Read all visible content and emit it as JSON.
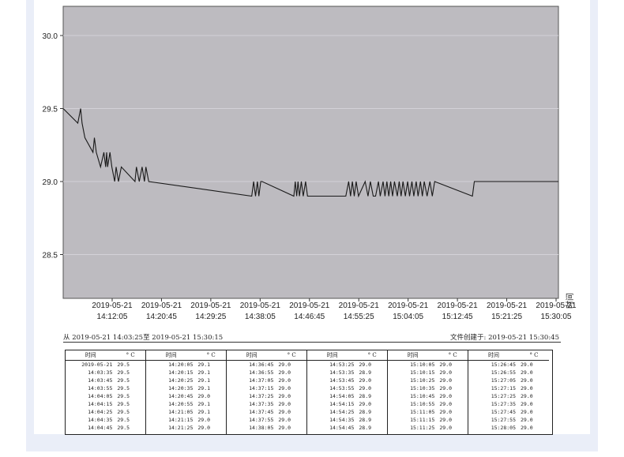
{
  "chart_data": {
    "type": "line",
    "ylim": [
      28.2,
      30.2
    ],
    "y_ticks": [
      "30.0",
      "29.5",
      "29.0",
      "28.5"
    ],
    "x_tick_labels": [
      [
        "2019-05-21",
        "14:12:05"
      ],
      [
        "2019-05-21",
        "14:20:45"
      ],
      [
        "2019-05-21",
        "14:29:25"
      ],
      [
        "2019-05-21",
        "14:38:05"
      ],
      [
        "2019-05-21",
        "14:46:45"
      ],
      [
        "2019-05-21",
        "14:55:25"
      ],
      [
        "2019-05-21",
        "15:04:05"
      ],
      [
        "2019-05-21",
        "15:12:45"
      ],
      [
        "2019-05-21",
        "15:21:25"
      ],
      [
        "2019-05-21",
        "15:30:05"
      ]
    ],
    "xlabel": "时间",
    "grid": true,
    "plot_background": "#bdbbc0",
    "line_color": "#1a1a1a",
    "series": [
      {
        "t": [
          "14:03:25",
          "14:06:00",
          "14:06:30",
          "14:06:45",
          "14:07:15",
          "14:08:40",
          "14:08:55",
          "14:09:15",
          "14:10:00",
          "14:10:35",
          "14:10:55",
          "14:11:05",
          "14:11:15",
          "14:11:40",
          "14:12:00",
          "14:12:30",
          "14:12:45",
          "14:13:10",
          "14:13:40",
          "14:16:05",
          "14:16:20",
          "14:16:50",
          "14:17:20",
          "14:17:45",
          "14:18:00",
          "14:18:30",
          "14:36:40",
          "14:37:00",
          "14:37:20",
          "14:37:40",
          "14:37:55",
          "14:38:15",
          "14:38:30",
          "14:44:05",
          "14:44:20",
          "14:44:35",
          "14:44:50",
          "14:45:05",
          "14:45:25",
          "14:45:45",
          "14:46:10",
          "14:46:30",
          "14:47:30",
          "14:53:15",
          "14:53:45",
          "14:54:05",
          "14:54:25",
          "14:54:45",
          "14:55:05",
          "14:55:30",
          "14:56:40",
          "14:57:10",
          "14:57:35",
          "14:58:05",
          "14:58:30",
          "14:59:00",
          "14:59:20",
          "14:59:50",
          "15:00:10",
          "15:00:30",
          "15:00:50",
          "15:01:10",
          "15:01:30",
          "15:01:50",
          "15:02:20",
          "15:02:40",
          "15:03:00",
          "15:03:20",
          "15:03:45",
          "15:04:10",
          "15:04:30",
          "15:04:55",
          "15:05:15",
          "15:05:40",
          "15:06:00",
          "15:06:25",
          "15:06:45",
          "15:07:05",
          "15:07:35",
          "15:08:05",
          "15:08:30",
          "15:08:55",
          "15:15:35",
          "15:15:55",
          "15:30:45"
        ],
        "values": [
          29.5,
          29.4,
          29.5,
          29.4,
          29.3,
          29.2,
          29.3,
          29.2,
          29.1,
          29.2,
          29.1,
          29.2,
          29.1,
          29.2,
          29.1,
          29.0,
          29.1,
          29.0,
          29.1,
          29.0,
          29.1,
          29.0,
          29.1,
          29.0,
          29.1,
          29.0,
          28.9,
          29.0,
          28.9,
          29.0,
          28.9,
          29.0,
          29.0,
          28.9,
          29.0,
          28.9,
          29.0,
          28.9,
          29.0,
          28.9,
          29.0,
          28.9,
          28.9,
          28.9,
          29.0,
          28.9,
          29.0,
          28.9,
          29.0,
          28.9,
          29.0,
          28.9,
          29.0,
          28.9,
          28.9,
          29.0,
          28.9,
          29.0,
          28.9,
          29.0,
          28.9,
          29.0,
          28.9,
          29.0,
          28.9,
          29.0,
          28.9,
          29.0,
          28.9,
          29.0,
          28.9,
          29.0,
          28.9,
          29.0,
          28.9,
          29.0,
          28.9,
          29.0,
          28.9,
          29.0,
          28.9,
          29.0,
          28.9,
          29.0,
          29.0
        ]
      }
    ]
  },
  "range_text": "从 2019-05-21 14:03:25至 2019-05-21 15:30:15",
  "created_text": "文件创建于: 2019-05-21 15:30:45",
  "table": {
    "header_time": "时间",
    "header_unit": "° C",
    "columns": [
      {
        "rows": [
          [
            "2019-05-21",
            "29.5"
          ],
          [
            "14:03:35",
            "29.5"
          ],
          [
            "14:03:45",
            "29.5"
          ],
          [
            "14:03:55",
            "29.5"
          ],
          [
            "14:04:05",
            "29.5"
          ],
          [
            "14:04:15",
            "29.5"
          ],
          [
            "14:04:25",
            "29.5"
          ],
          [
            "14:04:35",
            "29.5"
          ],
          [
            "14:04:45",
            "29.5"
          ]
        ]
      },
      {
        "rows": [
          [
            "14:20:05",
            "29.1"
          ],
          [
            "14:20:15",
            "29.1"
          ],
          [
            "14:20:25",
            "29.1"
          ],
          [
            "14:20:35",
            "29.1"
          ],
          [
            "14:20:45",
            "29.0"
          ],
          [
            "14:20:55",
            "29.1"
          ],
          [
            "14:21:05",
            "29.1"
          ],
          [
            "14:21:15",
            "29.0"
          ],
          [
            "14:21:25",
            "29.0"
          ]
        ]
      },
      {
        "rows": [
          [
            "14:36:45",
            "29.0"
          ],
          [
            "14:36:55",
            "29.0"
          ],
          [
            "14:37:05",
            "29.0"
          ],
          [
            "14:37:15",
            "29.0"
          ],
          [
            "14:37:25",
            "29.0"
          ],
          [
            "14:37:35",
            "29.0"
          ],
          [
            "14:37:45",
            "29.0"
          ],
          [
            "14:37:55",
            "29.0"
          ],
          [
            "14:38:05",
            "29.0"
          ]
        ]
      },
      {
        "rows": [
          [
            "14:53:25",
            "29.0"
          ],
          [
            "14:53:35",
            "28.9"
          ],
          [
            "14:53:45",
            "29.0"
          ],
          [
            "14:53:55",
            "29.0"
          ],
          [
            "14:54:05",
            "28.9"
          ],
          [
            "14:54:15",
            "29.0"
          ],
          [
            "14:54:25",
            "28.9"
          ],
          [
            "14:54:35",
            "28.9"
          ],
          [
            "14:54:45",
            "28.9"
          ]
        ]
      },
      {
        "rows": [
          [
            "15:10:05",
            "29.0"
          ],
          [
            "15:10:15",
            "29.0"
          ],
          [
            "15:10:25",
            "29.0"
          ],
          [
            "15:10:35",
            "29.0"
          ],
          [
            "15:10:45",
            "29.0"
          ],
          [
            "15:10:55",
            "29.0"
          ],
          [
            "15:11:05",
            "29.0"
          ],
          [
            "15:11:15",
            "29.0"
          ],
          [
            "15:11:25",
            "29.0"
          ]
        ]
      },
      {
        "rows": [
          [
            "15:26:45",
            "29.0"
          ],
          [
            "15:26:55",
            "29.0"
          ],
          [
            "15:27:05",
            "29.0"
          ],
          [
            "15:27:15",
            "29.0"
          ],
          [
            "15:27:25",
            "29.0"
          ],
          [
            "15:27:35",
            "29.0"
          ],
          [
            "15:27:45",
            "29.0"
          ],
          [
            "15:27:55",
            "29.0"
          ],
          [
            "15:28:05",
            "29.0"
          ]
        ]
      }
    ]
  }
}
